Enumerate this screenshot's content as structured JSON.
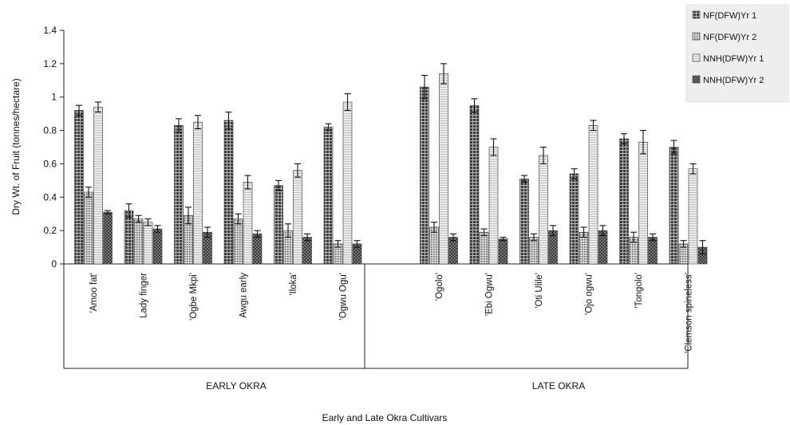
{
  "chart_data": {
    "type": "bar",
    "title": "",
    "ylabel": "Dry Wt. of Fruit (tonnes/hectare)",
    "xlabel": "Early and Late Okra Cultivars",
    "ylim": [
      0,
      1.4
    ],
    "yticks": [
      "0",
      "0.2",
      "0.4",
      "0.6",
      "0.8",
      "1",
      "1.2",
      "1.4"
    ],
    "groups": [
      {
        "label": "EARLY OKRA",
        "categories": [
          "'Amoo fat'",
          "Lady finger",
          "'Ogbe Mkpi'",
          "Awgu early",
          "'Iloka'",
          "'Ogwu Ogu'"
        ]
      },
      {
        "label": "LATE OKRA",
        "categories": [
          "'Ogolo'",
          "'Ebi Ogwu'",
          "'Oti Ulile'",
          "'Ojo ogwu'",
          "'Tongolo'",
          "'Clemson spineless'"
        ]
      }
    ],
    "categories": [
      "'Amoo fat'",
      "Lady finger",
      "'Ogbe Mkpi'",
      "Awgu early",
      "'Iloka'",
      "'Ogwu Ogu'",
      "'Ogolo'",
      "'Ebi Ogwu'",
      "'Oti Ulile'",
      "'Ojo ogwu'",
      "'Tongolo'",
      "'Clemson spineless'"
    ],
    "series": [
      {
        "name": "NF(DFW)Yr 1",
        "values": [
          0.92,
          0.32,
          0.83,
          0.86,
          0.47,
          0.82,
          1.06,
          0.95,
          0.51,
          0.54,
          0.75,
          0.7
        ],
        "errors": [
          0.03,
          0.04,
          0.04,
          0.05,
          0.03,
          0.02,
          0.07,
          0.04,
          0.02,
          0.03,
          0.03,
          0.04
        ],
        "color": "#555555",
        "pattern": "grid"
      },
      {
        "name": "NF(DFW)Yr 2",
        "values": [
          0.43,
          0.27,
          0.29,
          0.27,
          0.2,
          0.12,
          0.22,
          0.19,
          0.16,
          0.19,
          0.16,
          0.12
        ],
        "errors": [
          0.03,
          0.02,
          0.05,
          0.03,
          0.04,
          0.02,
          0.03,
          0.02,
          0.02,
          0.03,
          0.03,
          0.02
        ],
        "color": "#aaaaaa",
        "pattern": "dots"
      },
      {
        "name": "NNH(DFW)Yr 1",
        "values": [
          0.94,
          0.25,
          0.85,
          0.49,
          0.56,
          0.97,
          1.14,
          0.7,
          0.65,
          0.83,
          0.73,
          0.57
        ],
        "errors": [
          0.03,
          0.02,
          0.04,
          0.04,
          0.04,
          0.05,
          0.06,
          0.05,
          0.05,
          0.03,
          0.07,
          0.03
        ],
        "color": "#e3e3e3",
        "pattern": "lines"
      },
      {
        "name": "NNH(DFW)Yr 2",
        "values": [
          0.31,
          0.21,
          0.19,
          0.18,
          0.16,
          0.12,
          0.16,
          0.15,
          0.2,
          0.2,
          0.16,
          0.1
        ],
        "errors": [
          0.01,
          0.02,
          0.03,
          0.02,
          0.02,
          0.02,
          0.02,
          0.01,
          0.03,
          0.03,
          0.02,
          0.04
        ],
        "color": "#777777",
        "pattern": "crosshatch"
      }
    ],
    "legend_position": "top-right",
    "grid": false
  }
}
